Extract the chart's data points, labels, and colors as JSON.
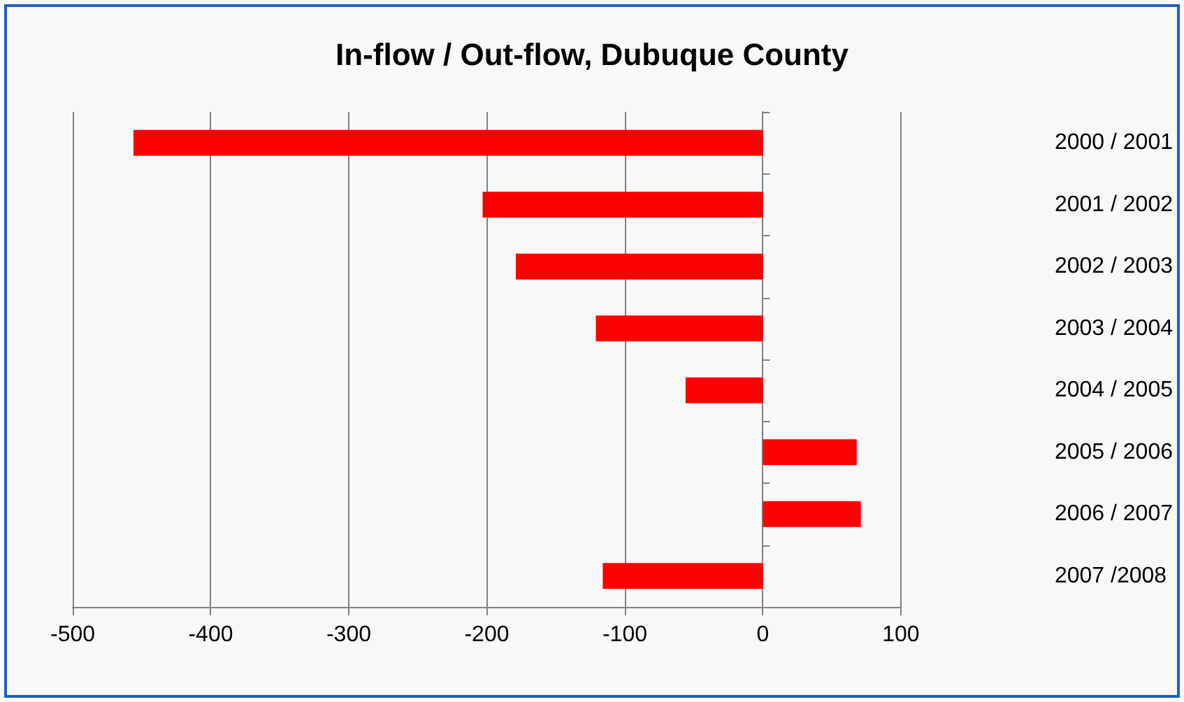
{
  "chart_data": {
    "type": "bar",
    "orientation": "horizontal",
    "title": "In-flow / Out-flow, Dubuque County",
    "categories": [
      "2000 / 2001",
      "2001 / 2002",
      "2002 / 2003",
      "2003 / 2004",
      "2004 / 2005",
      "2005 / 2006",
      "2006 / 2007",
      "2007 /2008"
    ],
    "values": [
      -456,
      -203,
      -179,
      -121,
      -56,
      68,
      71,
      -116
    ],
    "color": "#ff0000",
    "xlim": [
      -500,
      100
    ],
    "xticks": [
      -500,
      -400,
      -300,
      -200,
      -100,
      0,
      100
    ],
    "grid": "x"
  }
}
